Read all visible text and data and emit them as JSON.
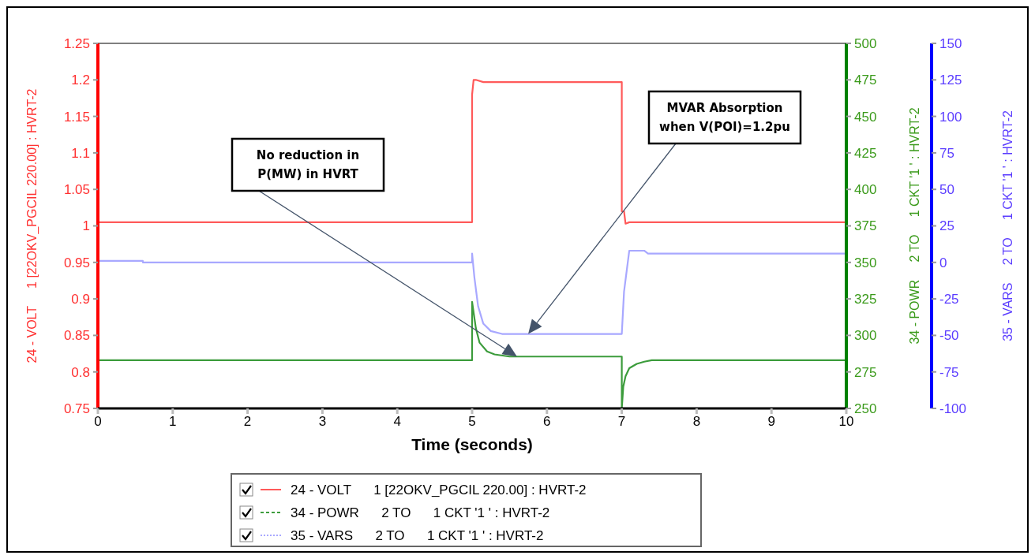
{
  "chart_data": {
    "type": "line",
    "xlabel": "Time (seconds)",
    "ylabel": "24 - VOLT     1 [22OKV_PGCIL 220.00] : HVRT-2",
    "y2label": "34 - POWR     2 TO     1 CKT '1 ' : HVRT-2",
    "y3label": "35 - VARS     2 TO     1 CKT '1 ' : HVRT-2",
    "xlim": [
      0,
      10
    ],
    "xticks": [
      0,
      1,
      2,
      3,
      4,
      5,
      6,
      7,
      8,
      9,
      10
    ],
    "ylim": [
      0.75,
      1.25
    ],
    "yticks": [
      0.75,
      0.8,
      0.85,
      0.9,
      0.95,
      1,
      1.05,
      1.1,
      1.15,
      1.2,
      1.25
    ],
    "y2lim": [
      250,
      500
    ],
    "y2ticks": [
      250,
      275,
      300,
      325,
      350,
      375,
      400,
      425,
      450,
      475,
      500
    ],
    "y3lim": [
      -100,
      150
    ],
    "y3ticks": [
      -100,
      -75,
      -50,
      -25,
      0,
      25,
      50,
      75,
      100,
      125,
      150
    ],
    "legend": "bottom",
    "annotations": [
      "No reduction in P(MW) in HVRT",
      "MVAR Absorption when V(POI)=1.2pu"
    ],
    "series": [
      {
        "name": "24 - VOLT      1 [22OKV_PGCIL 220.00] : HVRT-2",
        "color": "#ff5a5a",
        "x": [
          0,
          5,
          5,
          5.02,
          5.05,
          5.15,
          7,
          7,
          7.03,
          7.05,
          7.1,
          10
        ],
        "values": [
          1.005,
          1.005,
          1.18,
          1.2,
          1.2,
          1.197,
          1.197,
          1.02,
          1.02,
          1.003,
          1.005,
          1.005
        ]
      },
      {
        "name": "34 - POWR      2 TO      1 CKT '1 ' : HVRT-2",
        "color": "#3c9c3c",
        "axis": "y2",
        "x": [
          0,
          5,
          5,
          5.05,
          5.1,
          5.2,
          5.3,
          5.5,
          7,
          7,
          7.02,
          7.05,
          7.1,
          7.2,
          7.3,
          7.4,
          7.6,
          10
        ],
        "values": [
          283,
          283,
          323,
          305,
          295,
          289,
          287,
          285.5,
          285.5,
          250,
          265,
          272,
          277.5,
          280.5,
          282,
          283,
          283,
          283
        ]
      },
      {
        "name": "35 - VARS      2 TO      1 CKT '1 ' : HVRT-2",
        "color": "#a8a8ff",
        "axis": "y3",
        "x": [
          0,
          0.6,
          0.6,
          5,
          5,
          5.03,
          5.08,
          5.15,
          5.25,
          5.4,
          7,
          7,
          7.03,
          7.1,
          7.3,
          7.35,
          10
        ],
        "values": [
          1,
          1,
          0,
          0,
          6,
          -10,
          -30,
          -42,
          -47,
          -49,
          -49,
          -49,
          -20,
          8,
          8,
          6,
          6
        ]
      }
    ]
  }
}
